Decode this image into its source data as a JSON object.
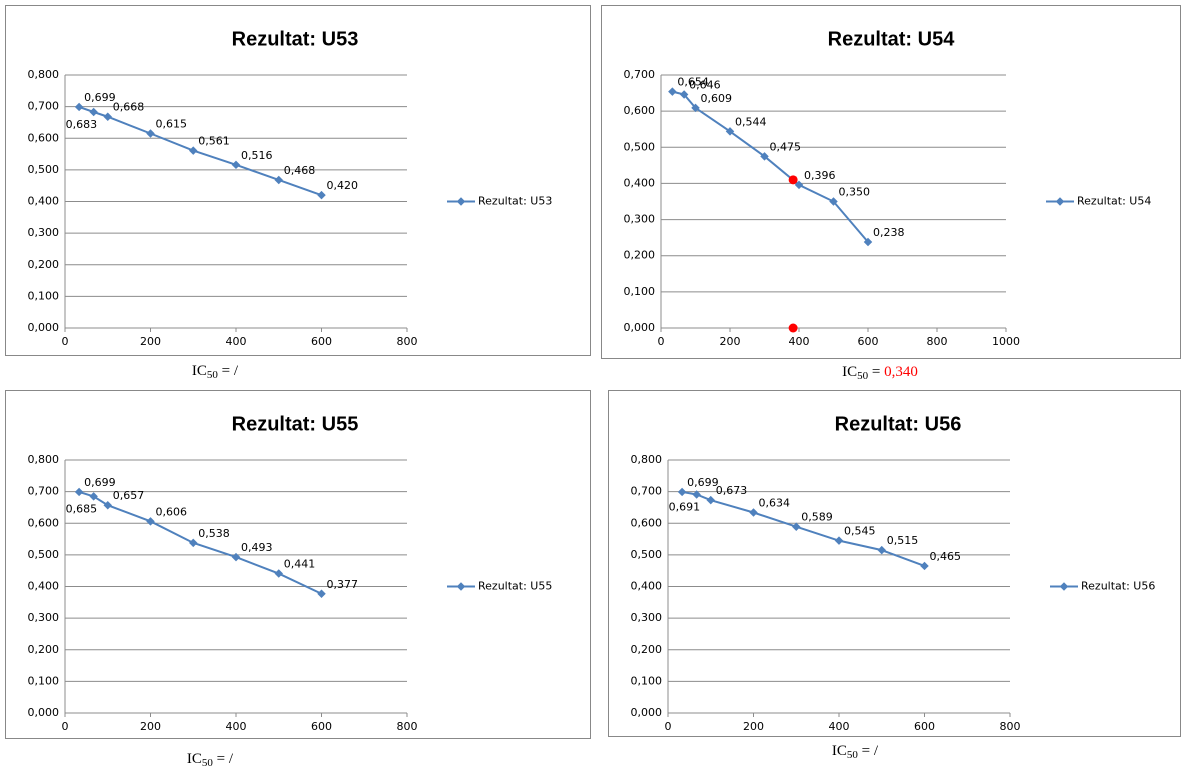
{
  "chart_data": [
    {
      "type": "line",
      "title": "Rezultat: U53",
      "x": [
        33,
        67,
        100,
        200,
        300,
        400,
        500,
        600
      ],
      "series": [
        {
          "name": "Rezultat: U53",
          "color": "#4f81bd",
          "values": [
            0.699,
            0.683,
            0.668,
            0.615,
            0.561,
            0.516,
            0.468,
            0.42
          ],
          "value_labels": [
            "0,699",
            "0,683",
            "0,668",
            "0,615",
            "0,561",
            "0,516",
            "0,468",
            "0,420"
          ]
        }
      ],
      "xlim": [
        0,
        800
      ],
      "xticks": [
        0,
        200,
        400,
        600,
        800
      ],
      "ylim": [
        0,
        0.8
      ],
      "yticks": [
        {
          "value": 0,
          "label": "0,000"
        },
        {
          "value": 0.1,
          "label": "0,100"
        },
        {
          "value": 0.2,
          "label": "0,200"
        },
        {
          "value": 0.3,
          "label": "0,300"
        },
        {
          "value": 0.4,
          "label": "0,400"
        },
        {
          "value": 0.5,
          "label": "0,500"
        },
        {
          "value": 0.6,
          "label": "0,600"
        },
        {
          "value": 0.7,
          "label": "0,700"
        },
        {
          "value": 0.8,
          "label": "0,800"
        }
      ],
      "grid": true,
      "legend": "right",
      "caption": {
        "main": "IC",
        "sub": "50",
        "rest": " = ",
        "value": "/",
        "value_color": "#000000"
      }
    },
    {
      "type": "line",
      "title": "Rezultat: U54",
      "x": [
        33,
        67,
        100,
        200,
        300,
        400,
        500,
        600
      ],
      "series": [
        {
          "name": "Rezultat: U54",
          "color": "#4f81bd",
          "values": [
            0.654,
            0.646,
            0.609,
            0.544,
            0.475,
            0.396,
            0.35,
            0.238
          ],
          "value_labels": [
            "0,654",
            "0,646",
            "0,609",
            "0,544",
            "0,475",
            "0,396",
            "0,350",
            "0,238"
          ]
        }
      ],
      "highlight": {
        "x": [
          383,
          383
        ],
        "values": [
          0.41,
          0.0
        ],
        "color": "#ff0000"
      },
      "xlim": [
        0,
        1000
      ],
      "xticks": [
        0,
        200,
        400,
        600,
        800,
        1000
      ],
      "ylim": [
        0,
        0.7
      ],
      "yticks": [
        {
          "value": 0,
          "label": "0,000"
        },
        {
          "value": 0.1,
          "label": "0,100"
        },
        {
          "value": 0.2,
          "label": "0,200"
        },
        {
          "value": 0.3,
          "label": "0,300"
        },
        {
          "value": 0.4,
          "label": "0,400"
        },
        {
          "value": 0.5,
          "label": "0,500"
        },
        {
          "value": 0.6,
          "label": "0,600"
        },
        {
          "value": 0.7,
          "label": "0,700"
        }
      ],
      "grid": true,
      "legend": "right",
      "caption": {
        "main": "IC",
        "sub": "50",
        "rest": " = ",
        "value": "0,340",
        "value_color": "#ff0000"
      }
    },
    {
      "type": "line",
      "title": "Rezultat: U55",
      "x": [
        33,
        67,
        100,
        200,
        300,
        400,
        500,
        600
      ],
      "series": [
        {
          "name": "Rezultat: U55",
          "color": "#4f81bd",
          "values": [
            0.699,
            0.685,
            0.657,
            0.606,
            0.538,
            0.493,
            0.441,
            0.377
          ],
          "value_labels": [
            "0,699",
            "0,685",
            "0,657",
            "0,606",
            "0,538",
            "0,493",
            "0,441",
            "0,377"
          ]
        }
      ],
      "xlim": [
        0,
        800
      ],
      "xticks": [
        0,
        200,
        400,
        600,
        800
      ],
      "ylim": [
        0,
        0.8
      ],
      "yticks": [
        {
          "value": 0,
          "label": "0,000"
        },
        {
          "value": 0.1,
          "label": "0,100"
        },
        {
          "value": 0.2,
          "label": "0,200"
        },
        {
          "value": 0.3,
          "label": "0,300"
        },
        {
          "value": 0.4,
          "label": "0,400"
        },
        {
          "value": 0.5,
          "label": "0,500"
        },
        {
          "value": 0.6,
          "label": "0,600"
        },
        {
          "value": 0.7,
          "label": "0,700"
        },
        {
          "value": 0.8,
          "label": "0,800"
        }
      ],
      "grid": true,
      "legend": "right",
      "caption": {
        "main": "IC",
        "sub": "50",
        "rest": " = ",
        "value": "/",
        "value_color": "#000000"
      }
    },
    {
      "type": "line",
      "title": "Rezultat: U56",
      "x": [
        33,
        67,
        100,
        200,
        300,
        400,
        500,
        600
      ],
      "series": [
        {
          "name": "Rezultat: U56",
          "color": "#4f81bd",
          "values": [
            0.699,
            0.691,
            0.673,
            0.634,
            0.589,
            0.545,
            0.515,
            0.465
          ],
          "value_labels": [
            "0,699",
            "0,691",
            "0,673",
            "0,634",
            "0,589",
            "0,545",
            "0,515",
            "0,465"
          ]
        }
      ],
      "xlim": [
        0,
        800
      ],
      "xticks": [
        0,
        200,
        400,
        600,
        800
      ],
      "ylim": [
        0,
        0.8
      ],
      "yticks": [
        {
          "value": 0,
          "label": "0,000"
        },
        {
          "value": 0.1,
          "label": "0,100"
        },
        {
          "value": 0.2,
          "label": "0,200"
        },
        {
          "value": 0.3,
          "label": "0,300"
        },
        {
          "value": 0.4,
          "label": "0,400"
        },
        {
          "value": 0.5,
          "label": "0,500"
        },
        {
          "value": 0.6,
          "label": "0,600"
        },
        {
          "value": 0.7,
          "label": "0,700"
        },
        {
          "value": 0.8,
          "label": "0,800"
        }
      ],
      "grid": true,
      "legend": "right",
      "caption": {
        "main": "IC",
        "sub": "50",
        "rest": " = ",
        "value": "/",
        "value_color": "#000000"
      }
    }
  ]
}
